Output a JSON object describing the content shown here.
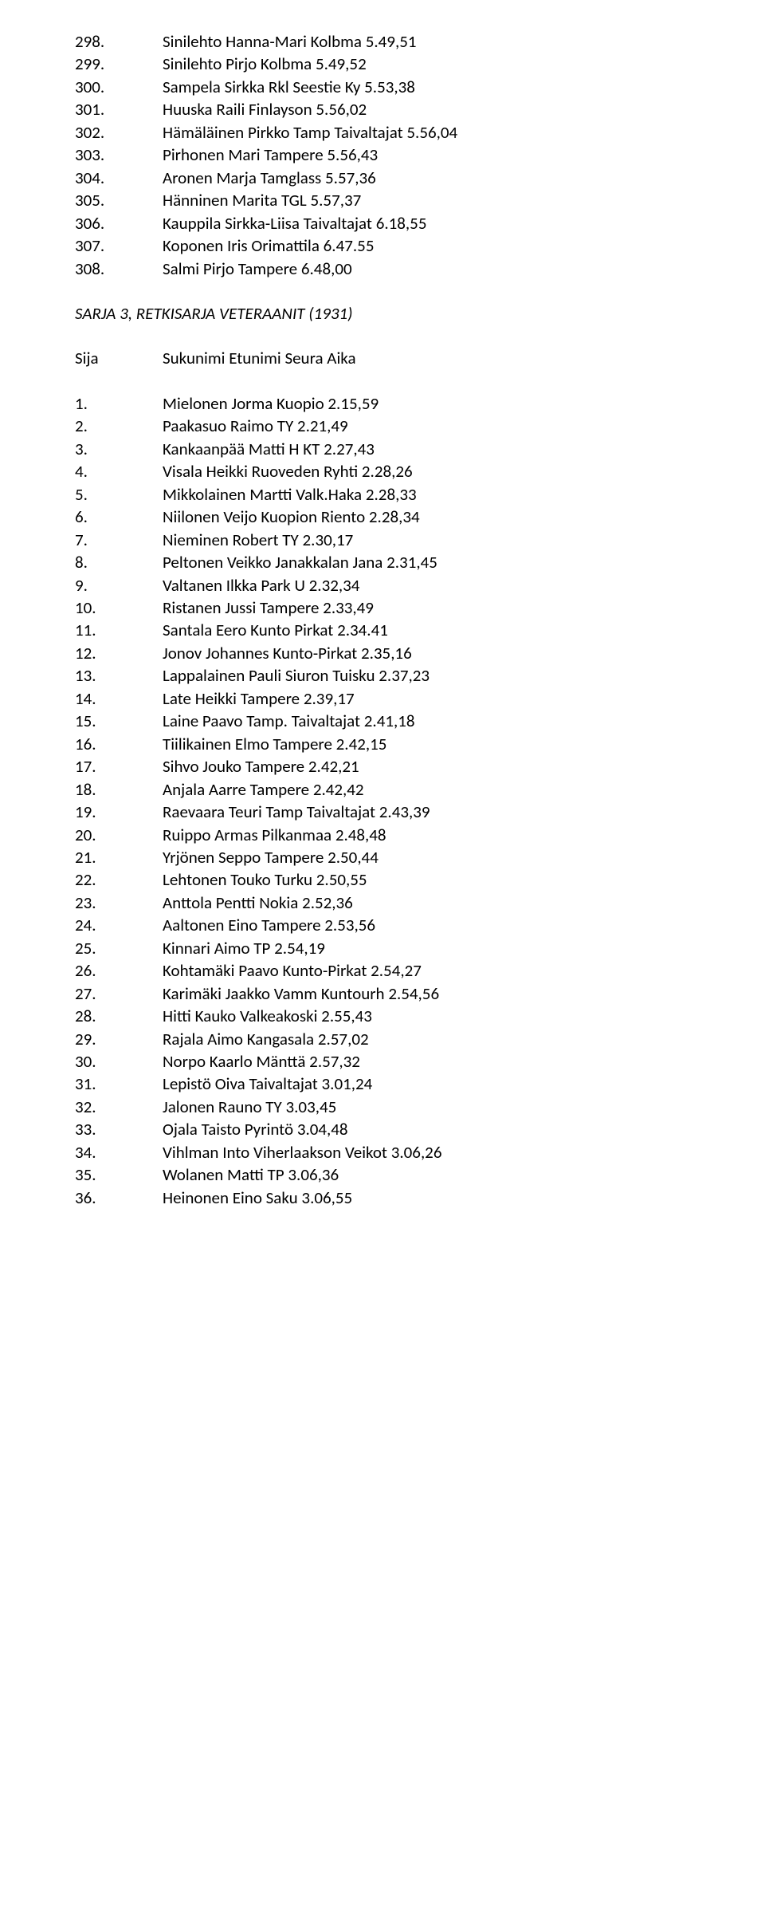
{
  "topList": [
    {
      "n": "298.",
      "v": "Sinilehto Hanna-Mari Kolbma 5.49,51"
    },
    {
      "n": "299.",
      "v": "Sinilehto Pirjo Kolbma 5.49,52"
    },
    {
      "n": "300.",
      "v": "Sampela Sirkka Rkl Seestie Ky 5.53,38"
    },
    {
      "n": "301.",
      "v": "Huuska Raili Finlayson 5.56,02"
    },
    {
      "n": "302.",
      "v": "Hämäläinen Pirkko Tamp Taivaltajat 5.56,04"
    },
    {
      "n": "303.",
      "v": "Pirhonen Mari Tampere 5.56,43"
    },
    {
      "n": "304.",
      "v": "Aronen Marja Tamglass 5.57,36"
    },
    {
      "n": "305.",
      "v": "Hänninen Marita TGL 5.57,37"
    },
    {
      "n": "306.",
      "v": "Kauppila Sirkka-Liisa Taivaltajat 6.18,55"
    },
    {
      "n": "307.",
      "v": "Koponen Iris Orimattila 6.47.55"
    },
    {
      "n": "308.",
      "v": "Salmi Pirjo Tampere 6.48,00"
    }
  ],
  "sectionTitle": "SARJA 3, RETKISARJA VETERAANIT (1931)",
  "sijaLabel": "Sija",
  "sijaHeader": "Sukunimi Etunimi Seura Aika",
  "bottomList": [
    {
      "n": "1.",
      "v": "Mielonen Jorma Kuopio 2.15,59"
    },
    {
      "n": "2.",
      "v": "Paakasuo Raimo TY 2.21,49"
    },
    {
      "n": "3.",
      "v": "Kankaanpää Matti H KT 2.27,43"
    },
    {
      "n": "4.",
      "v": "Visala Heikki Ruoveden Ryhti 2.28,26"
    },
    {
      "n": "5.",
      "v": "Mikkolainen Martti Valk.Haka 2.28,33"
    },
    {
      "n": "6.",
      "v": "Niilonen Veijo Kuopion Riento 2.28,34"
    },
    {
      "n": "7.",
      "v": "Nieminen Robert TY 2.30,17"
    },
    {
      "n": "8.",
      "v": "Peltonen Veikko Janakkalan Jana 2.31,45"
    },
    {
      "n": "9.",
      "v": "Valtanen Ilkka Park U 2.32,34"
    },
    {
      "n": "10.",
      "v": "Ristanen Jussi Tampere 2.33,49"
    },
    {
      "n": "11.",
      "v": "Santala Eero Kunto Pirkat 2.34.41"
    },
    {
      "n": "12.",
      "v": "Jonov Johannes Kunto-Pirkat 2.35,16"
    },
    {
      "n": "13.",
      "v": "Lappalainen Pauli Siuron Tuisku 2.37,23"
    },
    {
      "n": "14.",
      "v": "Late Heikki Tampere 2.39,17"
    },
    {
      "n": "15.",
      "v": "Laine Paavo Tamp. Taivaltajat 2.41,18"
    },
    {
      "n": "16.",
      "v": "Tiilikainen Elmo Tampere 2.42,15"
    },
    {
      "n": "17.",
      "v": "Sihvo Jouko Tampere 2.42,21"
    },
    {
      "n": "18.",
      "v": "Anjala Aarre Tampere 2.42,42"
    },
    {
      "n": "19.",
      "v": "Raevaara Teuri Tamp Taivaltajat 2.43,39"
    },
    {
      "n": "20.",
      "v": "Ruippo Armas Pilkanmaa 2.48,48"
    },
    {
      "n": "21.",
      "v": "Yrjönen Seppo Tampere 2.50,44"
    },
    {
      "n": "22.",
      "v": "Lehtonen Touko Turku 2.50,55"
    },
    {
      "n": "23.",
      "v": "Anttola Pentti Nokia 2.52,36"
    },
    {
      "n": "24.",
      "v": "Aaltonen Eino Tampere 2.53,56"
    },
    {
      "n": "25.",
      "v": "Kinnari Aimo TP 2.54,19"
    },
    {
      "n": "26.",
      "v": "Kohtamäki Paavo Kunto-Pirkat 2.54,27"
    },
    {
      "n": "27.",
      "v": "Karimäki Jaakko Vamm Kuntourh 2.54,56"
    },
    {
      "n": "28.",
      "v": "Hitti Kauko Valkeakoski 2.55,43"
    },
    {
      "n": "29.",
      "v": "Rajala Aimo Kangasala 2.57,02"
    },
    {
      "n": "30.",
      "v": "Norpo Kaarlo Mänttä 2.57,32"
    },
    {
      "n": "31.",
      "v": "Lepistö Oiva Taivaltajat 3.01,24"
    },
    {
      "n": "32.",
      "v": "Jalonen Rauno TY 3.03,45"
    },
    {
      "n": "33.",
      "v": "Ojala Taisto Pyrintö 3.04,48"
    },
    {
      "n": "34.",
      "v": "Vihlman Into Viherlaakson Veikot 3.06,26"
    },
    {
      "n": "35.",
      "v": "Wolanen Matti TP 3.06,36"
    },
    {
      "n": "36.",
      "v": "Heinonen Eino Saku 3.06,55"
    }
  ]
}
